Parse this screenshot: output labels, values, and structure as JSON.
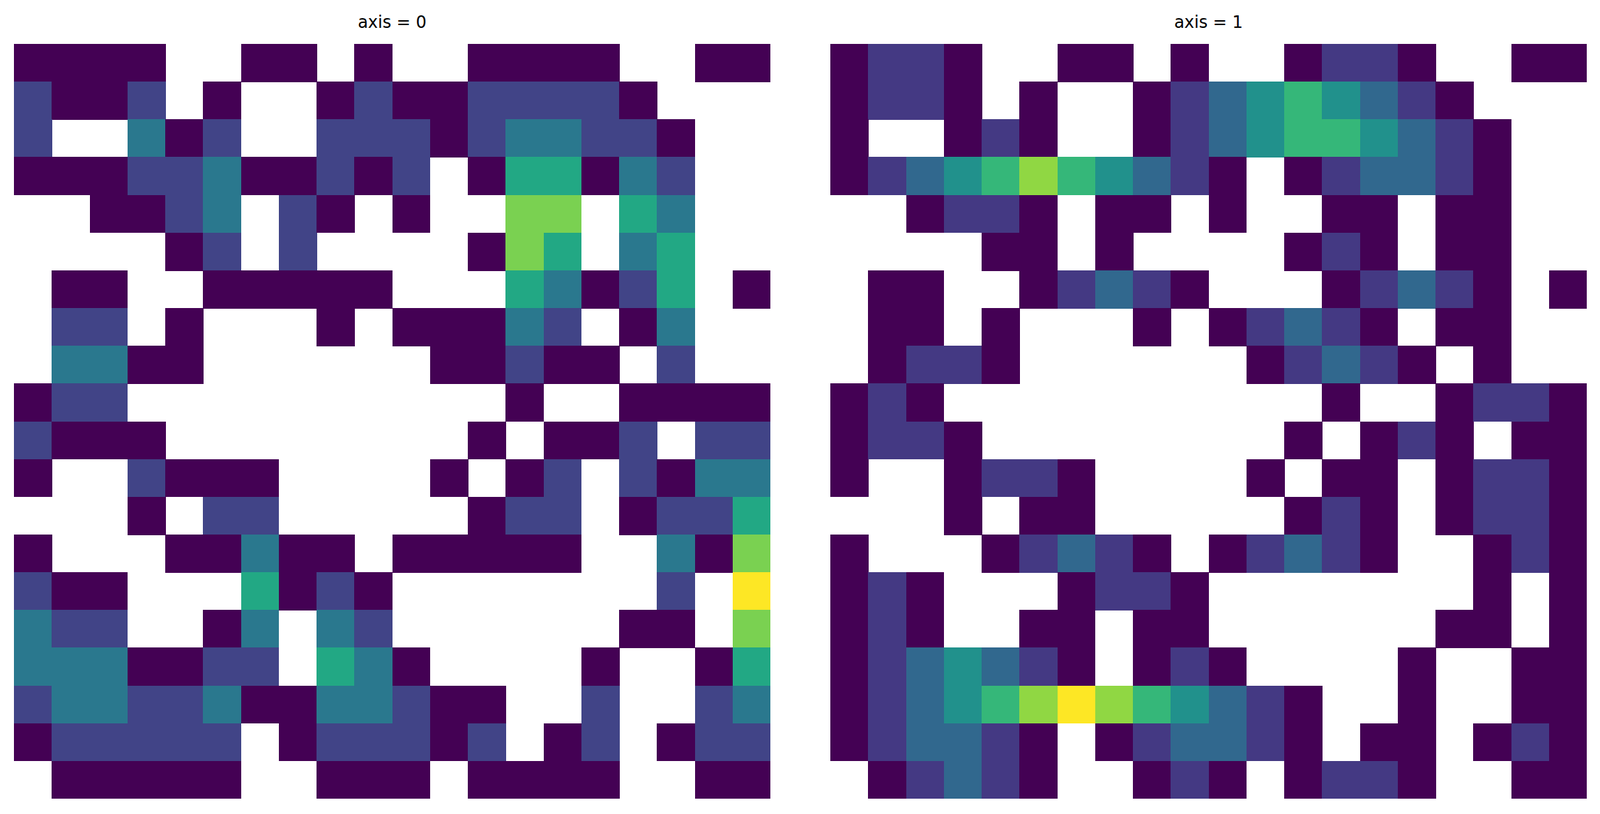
{
  "chart_data": [
    {
      "type": "heatmap",
      "title": "axis = 0",
      "tick_labels": false,
      "color_range": [
        1,
        6
      ],
      "cells": [
        [
          1,
          1,
          1,
          1,
          null,
          null,
          1,
          1,
          null,
          1,
          null,
          null,
          1,
          1,
          1,
          1,
          null,
          null,
          1,
          1
        ],
        [
          2,
          1,
          1,
          2,
          null,
          1,
          null,
          null,
          1,
          2,
          1,
          1,
          2,
          2,
          2,
          2,
          1,
          null,
          null,
          null
        ],
        [
          2,
          null,
          null,
          3,
          1,
          2,
          null,
          null,
          2,
          2,
          2,
          1,
          2,
          3,
          3,
          2,
          2,
          1,
          null,
          null
        ],
        [
          1,
          1,
          1,
          2,
          2,
          3,
          1,
          1,
          2,
          1,
          2,
          null,
          1,
          4,
          4,
          1,
          3,
          2,
          null,
          null
        ],
        [
          null,
          null,
          1,
          1,
          2,
          3,
          null,
          2,
          1,
          null,
          1,
          null,
          null,
          5,
          5,
          null,
          4,
          3,
          null,
          null
        ],
        [
          null,
          null,
          null,
          null,
          1,
          2,
          null,
          2,
          null,
          null,
          null,
          null,
          1,
          5,
          4,
          null,
          3,
          4,
          null,
          null
        ],
        [
          null,
          1,
          1,
          null,
          null,
          1,
          1,
          1,
          1,
          1,
          null,
          null,
          null,
          4,
          3,
          1,
          2,
          4,
          null,
          1
        ],
        [
          null,
          2,
          2,
          null,
          1,
          null,
          null,
          null,
          1,
          null,
          1,
          1,
          1,
          3,
          2,
          null,
          1,
          3,
          null,
          null
        ],
        [
          null,
          3,
          3,
          1,
          1,
          null,
          null,
          null,
          null,
          null,
          null,
          1,
          1,
          2,
          1,
          1,
          null,
          2,
          null,
          null
        ],
        [
          1,
          2,
          2,
          null,
          null,
          null,
          null,
          null,
          null,
          null,
          null,
          null,
          null,
          1,
          null,
          null,
          1,
          1,
          1,
          1
        ],
        [
          2,
          1,
          1,
          1,
          null,
          null,
          null,
          null,
          null,
          null,
          null,
          null,
          1,
          null,
          1,
          1,
          2,
          null,
          2,
          2
        ],
        [
          1,
          null,
          null,
          2,
          1,
          1,
          1,
          null,
          null,
          null,
          null,
          1,
          null,
          1,
          2,
          null,
          2,
          1,
          3,
          3
        ],
        [
          null,
          null,
          null,
          1,
          null,
          2,
          2,
          null,
          null,
          null,
          null,
          null,
          1,
          2,
          2,
          null,
          1,
          2,
          2,
          4
        ],
        [
          1,
          null,
          null,
          null,
          1,
          1,
          3,
          1,
          1,
          null,
          1,
          1,
          1,
          1,
          1,
          null,
          null,
          3,
          1,
          5
        ],
        [
          2,
          1,
          1,
          null,
          null,
          null,
          4,
          1,
          2,
          1,
          null,
          null,
          null,
          null,
          null,
          null,
          null,
          2,
          null,
          6
        ],
        [
          3,
          2,
          2,
          null,
          null,
          1,
          3,
          null,
          3,
          2,
          null,
          null,
          null,
          null,
          null,
          null,
          1,
          1,
          null,
          5
        ],
        [
          3,
          3,
          3,
          1,
          1,
          2,
          2,
          null,
          4,
          3,
          1,
          null,
          null,
          null,
          null,
          1,
          null,
          null,
          1,
          4
        ],
        [
          2,
          3,
          3,
          2,
          2,
          3,
          1,
          1,
          3,
          3,
          2,
          1,
          1,
          null,
          null,
          2,
          null,
          null,
          2,
          3
        ],
        [
          1,
          2,
          2,
          2,
          2,
          2,
          null,
          1,
          2,
          2,
          2,
          1,
          2,
          null,
          1,
          2,
          null,
          1,
          2,
          2
        ],
        [
          null,
          1,
          1,
          1,
          1,
          1,
          null,
          null,
          1,
          1,
          1,
          null,
          1,
          1,
          1,
          1,
          null,
          null,
          1,
          1
        ]
      ]
    },
    {
      "type": "heatmap",
      "title": "axis = 1",
      "tick_labels": false,
      "color_range": [
        1,
        7
      ],
      "cells": [
        [
          1,
          2,
          2,
          1,
          null,
          null,
          1,
          1,
          null,
          1,
          null,
          null,
          1,
          2,
          2,
          1,
          null,
          null,
          1,
          1
        ],
        [
          1,
          2,
          2,
          1,
          null,
          1,
          null,
          null,
          1,
          2,
          3,
          4,
          5,
          4,
          3,
          2,
          1,
          null,
          null,
          null
        ],
        [
          1,
          null,
          null,
          1,
          2,
          1,
          null,
          null,
          1,
          2,
          3,
          4,
          5,
          5,
          4,
          3,
          2,
          1,
          null,
          null
        ],
        [
          1,
          2,
          3,
          4,
          5,
          6,
          5,
          4,
          3,
          2,
          1,
          null,
          1,
          2,
          3,
          3,
          2,
          1,
          null,
          null
        ],
        [
          null,
          null,
          1,
          2,
          2,
          1,
          null,
          1,
          1,
          null,
          1,
          null,
          null,
          1,
          1,
          null,
          1,
          1,
          null,
          null
        ],
        [
          null,
          null,
          null,
          null,
          1,
          1,
          null,
          1,
          null,
          null,
          null,
          null,
          1,
          2,
          1,
          null,
          1,
          1,
          null,
          null
        ],
        [
          null,
          1,
          1,
          null,
          null,
          1,
          2,
          3,
          2,
          1,
          null,
          null,
          null,
          1,
          2,
          3,
          2,
          1,
          null,
          1
        ],
        [
          null,
          1,
          1,
          null,
          1,
          null,
          null,
          null,
          1,
          null,
          1,
          2,
          3,
          2,
          1,
          null,
          1,
          1,
          null,
          null
        ],
        [
          null,
          1,
          2,
          2,
          1,
          null,
          null,
          null,
          null,
          null,
          null,
          1,
          2,
          3,
          2,
          1,
          null,
          1,
          null,
          null
        ],
        [
          1,
          2,
          1,
          null,
          null,
          null,
          null,
          null,
          null,
          null,
          null,
          null,
          null,
          1,
          null,
          null,
          1,
          2,
          2,
          1
        ],
        [
          1,
          2,
          2,
          1,
          null,
          null,
          null,
          null,
          null,
          null,
          null,
          null,
          1,
          null,
          1,
          2,
          1,
          null,
          1,
          1
        ],
        [
          1,
          null,
          null,
          1,
          2,
          2,
          1,
          null,
          null,
          null,
          null,
          1,
          null,
          1,
          1,
          null,
          1,
          2,
          2,
          1
        ],
        [
          null,
          null,
          null,
          1,
          null,
          1,
          1,
          null,
          null,
          null,
          null,
          null,
          1,
          2,
          1,
          null,
          1,
          2,
          2,
          1
        ],
        [
          1,
          null,
          null,
          null,
          1,
          2,
          3,
          2,
          1,
          null,
          1,
          2,
          3,
          2,
          1,
          null,
          null,
          1,
          2,
          1
        ],
        [
          1,
          2,
          1,
          null,
          null,
          null,
          1,
          2,
          2,
          1,
          null,
          null,
          null,
          null,
          null,
          null,
          null,
          1,
          null,
          1
        ],
        [
          1,
          2,
          1,
          null,
          null,
          1,
          1,
          null,
          1,
          1,
          null,
          null,
          null,
          null,
          null,
          null,
          1,
          1,
          null,
          1
        ],
        [
          1,
          2,
          3,
          4,
          3,
          2,
          1,
          null,
          1,
          2,
          1,
          null,
          null,
          null,
          null,
          1,
          null,
          null,
          1,
          1
        ],
        [
          1,
          2,
          3,
          4,
          5,
          6,
          7,
          6,
          5,
          4,
          3,
          2,
          1,
          null,
          null,
          1,
          null,
          null,
          1,
          1
        ],
        [
          1,
          2,
          3,
          3,
          2,
          1,
          null,
          1,
          2,
          3,
          3,
          2,
          1,
          null,
          1,
          1,
          null,
          1,
          2,
          1
        ],
        [
          null,
          1,
          2,
          3,
          2,
          1,
          null,
          null,
          1,
          2,
          1,
          null,
          1,
          2,
          2,
          1,
          null,
          null,
          1,
          1
        ]
      ]
    }
  ]
}
